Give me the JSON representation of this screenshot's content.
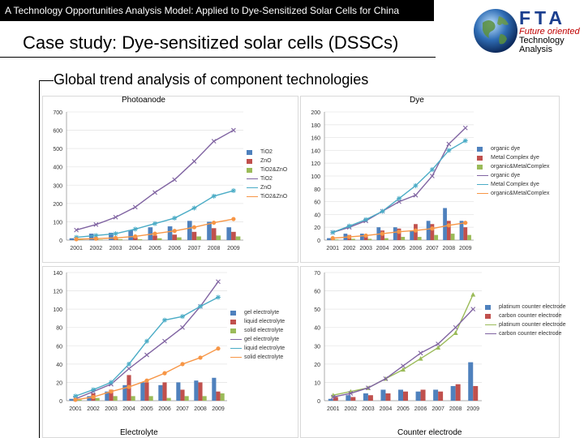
{
  "header": {
    "topbar": "A Technology Opportunities Analysis Model: Applied to Dye-Sensitized Solar Cells for China",
    "title": "Case study: Dye-sensitized solar cells (DSSCs)",
    "subtitle": "Global trend analysis of component technologies"
  },
  "logo": {
    "big": "FTA",
    "line1": "Future oriented",
    "line2": "Technology",
    "line3": "Analysis",
    "icon": "globe-icon"
  },
  "colors": {
    "blue": "#4f81bd",
    "red": "#c0504d",
    "green": "#9bbb59",
    "purple": "#8064a2",
    "cyan": "#4bacc6",
    "orange": "#f79646"
  },
  "chart_data": [
    {
      "type": "bar",
      "title": "Photoanode",
      "categories": [
        "2001",
        "2002",
        "2003",
        "2004",
        "2005",
        "2006",
        "2007",
        "2008",
        "2009"
      ],
      "ylim": [
        0,
        700
      ],
      "yticks": [
        0,
        100,
        200,
        300,
        400,
        500,
        600,
        700
      ],
      "series": [
        {
          "name": "TiO2",
          "kind": "bar",
          "color": "#4f81bd",
          "values": [
            10,
            35,
            40,
            55,
            70,
            75,
            105,
            100,
            70
          ]
        },
        {
          "name": "ZnO",
          "kind": "bar",
          "color": "#c0504d",
          "values": [
            3,
            8,
            10,
            15,
            25,
            30,
            45,
            65,
            45
          ]
        },
        {
          "name": "TiO2&ZnO",
          "kind": "bar",
          "color": "#9bbb59",
          "values": [
            2,
            3,
            5,
            5,
            10,
            15,
            20,
            25,
            20
          ]
        },
        {
          "name": "TiO2",
          "kind": "line",
          "marker": "x",
          "color": "#8064a2",
          "values": [
            55,
            85,
            125,
            180,
            260,
            330,
            430,
            540,
            600
          ]
        },
        {
          "name": "ZnO",
          "kind": "line",
          "marker": "star",
          "color": "#4bacc6",
          "values": [
            15,
            25,
            35,
            60,
            90,
            120,
            175,
            240,
            270
          ]
        },
        {
          "name": "TiO2&ZnO",
          "kind": "line",
          "marker": "dot",
          "color": "#f79646",
          "values": [
            5,
            8,
            12,
            20,
            35,
            50,
            70,
            95,
            115
          ]
        }
      ]
    },
    {
      "type": "bar",
      "title": "Dye",
      "categories": [
        "2001",
        "2002",
        "2003",
        "2004",
        "2005",
        "2006",
        "2007",
        "2008",
        "2009"
      ],
      "ylim": [
        0,
        200
      ],
      "yticks": [
        0,
        20,
        40,
        60,
        80,
        100,
        120,
        140,
        160,
        180,
        200
      ],
      "series": [
        {
          "name": "organic dye",
          "kind": "bar",
          "color": "#4f81bd",
          "values": [
            3,
            10,
            10,
            20,
            20,
            15,
            30,
            50,
            30
          ]
        },
        {
          "name": "Metal Complex dye",
          "kind": "bar",
          "color": "#c0504d",
          "values": [
            3,
            8,
            8,
            15,
            18,
            25,
            25,
            30,
            20
          ]
        },
        {
          "name": "organic&MetalComplex",
          "kind": "bar",
          "color": "#9bbb59",
          "values": [
            1,
            2,
            2,
            3,
            5,
            5,
            8,
            10,
            8
          ]
        },
        {
          "name": "organic dye",
          "kind": "line",
          "marker": "x",
          "color": "#8064a2",
          "values": [
            12,
            20,
            30,
            45,
            60,
            70,
            100,
            150,
            175
          ]
        },
        {
          "name": "Metal Complex dye",
          "kind": "line",
          "marker": "star",
          "color": "#4bacc6",
          "values": [
            12,
            22,
            32,
            45,
            65,
            85,
            110,
            140,
            155
          ]
        },
        {
          "name": "organic&MetalComplex",
          "kind": "line",
          "marker": "dot",
          "color": "#f79646",
          "values": [
            3,
            5,
            7,
            10,
            13,
            15,
            18,
            23,
            27
          ]
        }
      ]
    },
    {
      "type": "bar",
      "title": "Electrolyte",
      "categories": [
        "2001",
        "2002",
        "2003",
        "2004",
        "2005",
        "2006",
        "2007",
        "2008",
        "2009"
      ],
      "ylim": [
        0,
        140
      ],
      "yticks": [
        0,
        20,
        40,
        60,
        80,
        100,
        120,
        140
      ],
      "series": [
        {
          "name": "gel electrolyte",
          "kind": "bar",
          "color": "#4f81bd",
          "values": [
            2,
            5,
            10,
            17,
            20,
            17,
            20,
            22,
            25
          ]
        },
        {
          "name": "liquid electrolyte",
          "kind": "bar",
          "color": "#c0504d",
          "values": [
            2,
            8,
            12,
            28,
            20,
            20,
            12,
            20,
            10
          ]
        },
        {
          "name": "solid electrolyte",
          "kind": "bar",
          "color": "#9bbb59",
          "values": [
            1,
            3,
            5,
            5,
            5,
            3,
            5,
            5,
            8
          ]
        },
        {
          "name": "gel electrolyte",
          "kind": "line",
          "marker": "x",
          "color": "#8064a2",
          "values": [
            2,
            10,
            18,
            35,
            50,
            65,
            80,
            103,
            130
          ]
        },
        {
          "name": "liquid electrolyte",
          "kind": "line",
          "marker": "star",
          "color": "#4bacc6",
          "values": [
            5,
            12,
            20,
            40,
            65,
            88,
            92,
            103,
            113
          ]
        },
        {
          "name": "solid electrolyte",
          "kind": "line",
          "marker": "dot",
          "color": "#f79646",
          "values": [
            1,
            4,
            10,
            15,
            22,
            30,
            40,
            47,
            57
          ]
        }
      ]
    },
    {
      "type": "bar",
      "title": "Counter electrode",
      "categories": [
        "2001",
        "2002",
        "2003",
        "2004",
        "2005",
        "2006",
        "2007",
        "2008",
        "2009"
      ],
      "ylim": [
        0,
        70
      ],
      "yticks": [
        0,
        10,
        20,
        30,
        40,
        50,
        60,
        70
      ],
      "series": [
        {
          "name": "platinum counter electrode",
          "kind": "bar",
          "color": "#4f81bd",
          "values": [
            1,
            3,
            4,
            6,
            6,
            5,
            6,
            8,
            21
          ]
        },
        {
          "name": "carbon counter electrode",
          "kind": "bar",
          "color": "#c0504d",
          "values": [
            2,
            2,
            3,
            4,
            5,
            6,
            5,
            9,
            8
          ]
        },
        {
          "name": "platinum counter electrode",
          "kind": "line",
          "marker": "triangle",
          "color": "#9bbb59",
          "values": [
            3,
            5,
            7,
            12,
            17,
            23,
            29,
            37,
            58
          ]
        },
        {
          "name": "carbon counter electrode",
          "kind": "line",
          "marker": "x",
          "color": "#8064a2",
          "values": [
            2,
            4,
            7,
            12,
            19,
            26,
            31,
            40,
            50
          ]
        }
      ]
    }
  ]
}
